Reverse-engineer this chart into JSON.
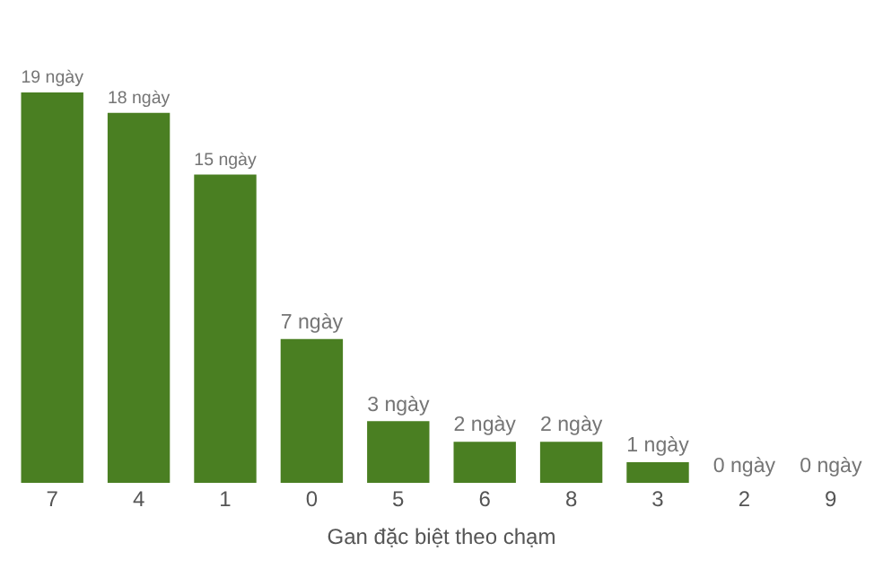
{
  "chart_data": {
    "type": "bar",
    "xlabel": "Gan đặc biệt theo chạm",
    "categories": [
      "7",
      "4",
      "1",
      "0",
      "5",
      "6",
      "8",
      "3",
      "2",
      "9"
    ],
    "values": [
      19,
      18,
      15,
      7,
      3,
      2,
      2,
      1,
      0,
      0
    ],
    "value_labels": [
      "19 ngày",
      "18 ngày",
      "15 ngày",
      "7 ngày",
      "3 ngày",
      "2 ngày",
      "2 ngày",
      "1 ngày",
      "0 ngày",
      "0 ngày"
    ],
    "color": "#4a7f22",
    "grid": false,
    "legend": false
  }
}
